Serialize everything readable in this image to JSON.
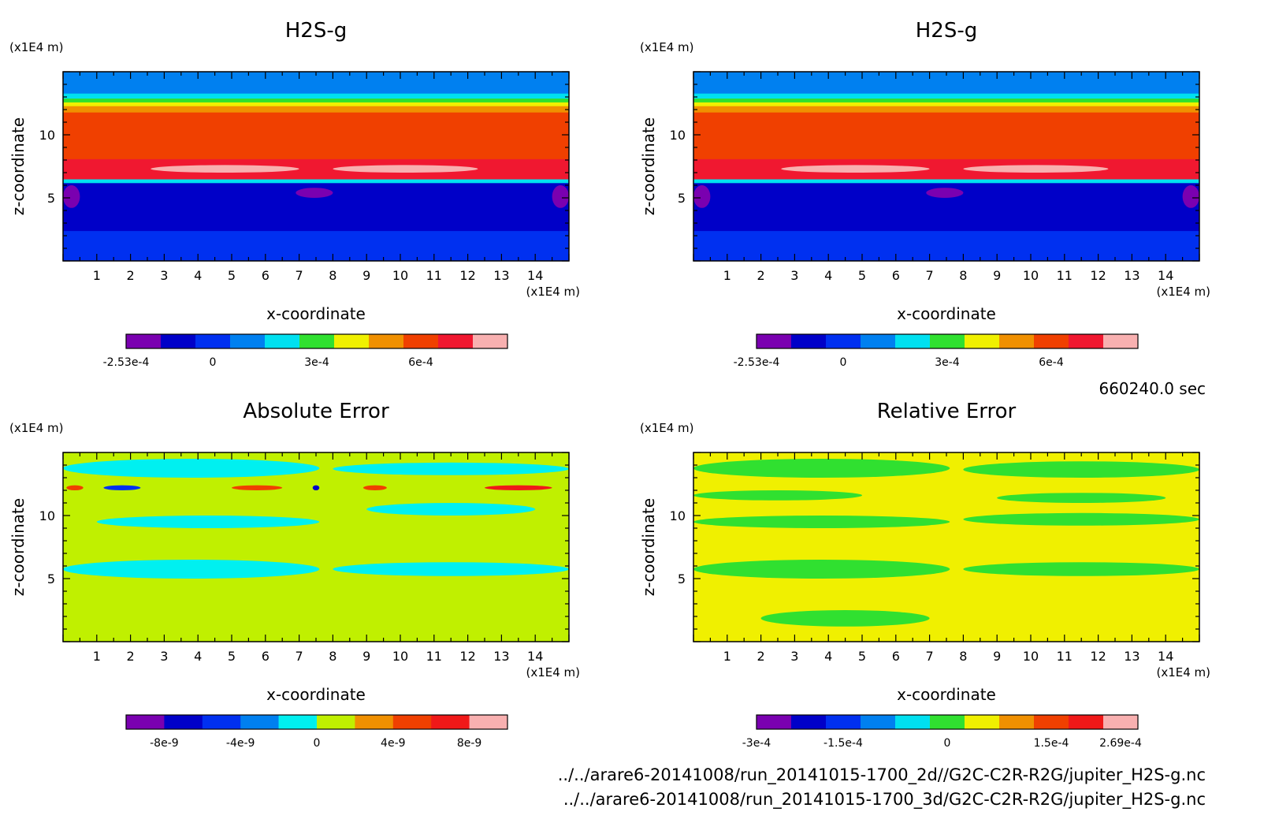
{
  "time_label": "660240.0 sec",
  "footer": {
    "line1": "../../arare6-20141008/run_20141015-1700_2d//G2C-C2R-R2G/jupiter_H2S-g.nc",
    "line2": "../../arare6-20141008/run_20141015-1700_3d/G2C-C2R-R2G/jupiter_H2S-g.nc"
  },
  "chart_data": [
    {
      "type": "heatmap",
      "title": "H2S-g",
      "xlabel": "x-coordinate",
      "ylabel": "z-coordinate",
      "x_unit": "(x1E4 m)",
      "y_unit": "(x1E4 m)",
      "xlim": [
        0,
        15
      ],
      "ylim": [
        0,
        15
      ],
      "x_ticks": [
        "1",
        "2",
        "3",
        "4",
        "5",
        "6",
        "7",
        "8",
        "9",
        "10",
        "11",
        "12",
        "13",
        "14"
      ],
      "y_ticks": [
        "5",
        "10"
      ],
      "colorbar": {
        "colors": [
          "#7a00b0",
          "#0000c8",
          "#0030f0",
          "#0080f0",
          "#00e0f0",
          "#30e030",
          "#f0f000",
          "#f09000",
          "#f04000",
          "#f01830",
          "#f8b0b0"
        ],
        "labels": [
          "-2.53e-4",
          "0",
          "3e-4",
          "6e-4"
        ],
        "label_positions": [
          0,
          2.5,
          5.5,
          8.5
        ]
      },
      "bands": [
        {
          "z": [
            0,
            2.4
          ],
          "color": "#0030f0"
        },
        {
          "z": [
            2.4,
            6.2
          ],
          "color": "#0000c8"
        },
        {
          "z": [
            6.2,
            6.5
          ],
          "color": "#00e0f0"
        },
        {
          "z": [
            6.5,
            8.1
          ],
          "color": "#f01830"
        },
        {
          "z": [
            8.1,
            11.8
          ],
          "color": "#f04000"
        },
        {
          "z": [
            11.8,
            12.3
          ],
          "color": "#f09000"
        },
        {
          "z": [
            12.3,
            12.6
          ],
          "color": "#f0f000"
        },
        {
          "z": [
            12.6,
            12.9
          ],
          "color": "#30e030"
        },
        {
          "z": [
            12.9,
            13.3
          ],
          "color": "#00e0f0"
        },
        {
          "z": [
            13.3,
            15
          ],
          "color": "#0080f0"
        }
      ],
      "patches": [
        {
          "x": [
            2.6,
            7.0
          ],
          "z": [
            7.0,
            7.6
          ],
          "color": "#f8b0b0"
        },
        {
          "x": [
            8.0,
            12.3
          ],
          "z": [
            7.0,
            7.6
          ],
          "color": "#f8b0b0"
        },
        {
          "x": [
            6.9,
            8.0
          ],
          "z": [
            5.0,
            5.8
          ],
          "color": "#7a00b0"
        },
        {
          "x": [
            0.0,
            0.5
          ],
          "z": [
            4.2,
            6.0
          ],
          "color": "#7a00b0"
        },
        {
          "x": [
            14.5,
            15.0
          ],
          "z": [
            4.2,
            6.0
          ],
          "color": "#7a00b0"
        }
      ]
    },
    {
      "type": "heatmap",
      "title": "H2S-g",
      "xlabel": "x-coordinate",
      "ylabel": "z-coordinate",
      "x_unit": "(x1E4 m)",
      "y_unit": "(x1E4 m)",
      "xlim": [
        0,
        15
      ],
      "ylim": [
        0,
        15
      ],
      "x_ticks": [
        "1",
        "2",
        "3",
        "4",
        "5",
        "6",
        "7",
        "8",
        "9",
        "10",
        "11",
        "12",
        "13",
        "14"
      ],
      "y_ticks": [
        "5",
        "10"
      ],
      "colorbar": {
        "colors": [
          "#7a00b0",
          "#0000c8",
          "#0030f0",
          "#0080f0",
          "#00e0f0",
          "#30e030",
          "#f0f000",
          "#f09000",
          "#f04000",
          "#f01830",
          "#f8b0b0"
        ],
        "labels": [
          "-2.53e-4",
          "0",
          "3e-4",
          "6e-4"
        ],
        "label_positions": [
          0,
          2.5,
          5.5,
          8.5
        ]
      },
      "bands": [
        {
          "z": [
            0,
            2.4
          ],
          "color": "#0030f0"
        },
        {
          "z": [
            2.4,
            6.2
          ],
          "color": "#0000c8"
        },
        {
          "z": [
            6.2,
            6.5
          ],
          "color": "#00e0f0"
        },
        {
          "z": [
            6.5,
            8.1
          ],
          "color": "#f01830"
        },
        {
          "z": [
            8.1,
            11.8
          ],
          "color": "#f04000"
        },
        {
          "z": [
            11.8,
            12.3
          ],
          "color": "#f09000"
        },
        {
          "z": [
            12.3,
            12.6
          ],
          "color": "#f0f000"
        },
        {
          "z": [
            12.6,
            12.9
          ],
          "color": "#30e030"
        },
        {
          "z": [
            12.9,
            13.3
          ],
          "color": "#00e0f0"
        },
        {
          "z": [
            13.3,
            15
          ],
          "color": "#0080f0"
        }
      ],
      "patches": [
        {
          "x": [
            2.6,
            7.0
          ],
          "z": [
            7.0,
            7.6
          ],
          "color": "#f8b0b0"
        },
        {
          "x": [
            8.0,
            12.3
          ],
          "z": [
            7.0,
            7.6
          ],
          "color": "#f8b0b0"
        },
        {
          "x": [
            6.9,
            8.0
          ],
          "z": [
            5.0,
            5.8
          ],
          "color": "#7a00b0"
        },
        {
          "x": [
            0.0,
            0.5
          ],
          "z": [
            4.2,
            6.0
          ],
          "color": "#7a00b0"
        },
        {
          "x": [
            14.5,
            15.0
          ],
          "z": [
            4.2,
            6.0
          ],
          "color": "#7a00b0"
        }
      ]
    },
    {
      "type": "heatmap",
      "title": "Absolute Error",
      "xlabel": "x-coordinate",
      "ylabel": "z-coordinate",
      "x_unit": "(x1E4 m)",
      "y_unit": "(x1E4 m)",
      "xlim": [
        0,
        15
      ],
      "ylim": [
        0,
        15
      ],
      "x_ticks": [
        "1",
        "2",
        "3",
        "4",
        "5",
        "6",
        "7",
        "8",
        "9",
        "10",
        "11",
        "12",
        "13",
        "14"
      ],
      "y_ticks": [
        "5",
        "10"
      ],
      "colorbar": {
        "colors": [
          "#7a00b0",
          "#0000c8",
          "#0030f0",
          "#0080f0",
          "#00f0f0",
          "#c0f000",
          "#f09000",
          "#f04000",
          "#f01818",
          "#f8b0b0"
        ],
        "labels": [
          "-8e-9",
          "-4e-9",
          "0",
          "4e-9",
          "8e-9"
        ],
        "label_positions": [
          1,
          3,
          5,
          7,
          9
        ]
      },
      "bands": [
        {
          "z": [
            0,
            15
          ],
          "color": "#c0f000"
        }
      ],
      "patches": [
        {
          "x": [
            0.0,
            7.6
          ],
          "z": [
            5.0,
            6.5
          ],
          "color": "#00f0f0"
        },
        {
          "x": [
            8.0,
            15.0
          ],
          "z": [
            5.2,
            6.3
          ],
          "color": "#00f0f0"
        },
        {
          "x": [
            1.0,
            7.6
          ],
          "z": [
            9.0,
            10.0
          ],
          "color": "#00f0f0"
        },
        {
          "x": [
            9.0,
            14.0
          ],
          "z": [
            10.0,
            11.0
          ],
          "color": "#00f0f0"
        },
        {
          "x": [
            0.0,
            7.6
          ],
          "z": [
            13.0,
            14.5
          ],
          "color": "#00f0f0"
        },
        {
          "x": [
            8.0,
            15.0
          ],
          "z": [
            13.2,
            14.2
          ],
          "color": "#00f0f0"
        },
        {
          "x": [
            1.2,
            2.3
          ],
          "z": [
            12.0,
            12.4
          ],
          "color": "#0030f0"
        },
        {
          "x": [
            0.1,
            0.6
          ],
          "z": [
            12.0,
            12.4
          ],
          "color": "#f04000"
        },
        {
          "x": [
            5.0,
            6.5
          ],
          "z": [
            12.0,
            12.4
          ],
          "color": "#f04000"
        },
        {
          "x": [
            7.4,
            7.6
          ],
          "z": [
            12.0,
            12.4
          ],
          "color": "#0000c8"
        },
        {
          "x": [
            8.9,
            9.6
          ],
          "z": [
            12.0,
            12.4
          ],
          "color": "#f04000"
        },
        {
          "x": [
            12.5,
            14.5
          ],
          "z": [
            12.0,
            12.4
          ],
          "color": "#f01818"
        }
      ]
    },
    {
      "type": "heatmap",
      "title": "Relative Error",
      "xlabel": "x-coordinate",
      "ylabel": "z-coordinate",
      "x_unit": "(x1E4 m)",
      "y_unit": "(x1E4 m)",
      "xlim": [
        0,
        15
      ],
      "ylim": [
        0,
        15
      ],
      "x_ticks": [
        "1",
        "2",
        "3",
        "4",
        "5",
        "6",
        "7",
        "8",
        "9",
        "10",
        "11",
        "12",
        "13",
        "14"
      ],
      "y_ticks": [
        "5",
        "10"
      ],
      "colorbar": {
        "colors": [
          "#7a00b0",
          "#0000c8",
          "#0030f0",
          "#0080f0",
          "#00e0f0",
          "#30e030",
          "#f0f000",
          "#f09000",
          "#f04000",
          "#f01818",
          "#f8b0b0"
        ],
        "labels": [
          "-3e-4",
          "-1.5e-4",
          "0",
          "1.5e-4",
          "2.69e-4"
        ],
        "label_positions": [
          0,
          2.5,
          5.5,
          8.5,
          10.5
        ]
      },
      "bands": [
        {
          "z": [
            0,
            15
          ],
          "color": "#f0f000"
        }
      ],
      "patches": [
        {
          "x": [
            0.0,
            7.6
          ],
          "z": [
            9.0,
            10.0
          ],
          "color": "#30e030"
        },
        {
          "x": [
            8.0,
            15.0
          ],
          "z": [
            9.2,
            10.2
          ],
          "color": "#30e030"
        },
        {
          "x": [
            0.0,
            7.6
          ],
          "z": [
            13.0,
            14.5
          ],
          "color": "#30e030"
        },
        {
          "x": [
            8.0,
            15.0
          ],
          "z": [
            13.0,
            14.3
          ],
          "color": "#30e030"
        },
        {
          "x": [
            0.0,
            7.6
          ],
          "z": [
            5.0,
            6.5
          ],
          "color": "#30e030"
        },
        {
          "x": [
            8.0,
            15.0
          ],
          "z": [
            5.2,
            6.3
          ],
          "color": "#30e030"
        },
        {
          "x": [
            2.0,
            7.0
          ],
          "z": [
            1.2,
            2.5
          ],
          "color": "#30e030"
        },
        {
          "x": [
            0.0,
            5.0
          ],
          "z": [
            11.2,
            12.0
          ],
          "color": "#30e030"
        },
        {
          "x": [
            9.0,
            14.0
          ],
          "z": [
            11.0,
            11.8
          ],
          "color": "#30e030"
        }
      ]
    }
  ]
}
